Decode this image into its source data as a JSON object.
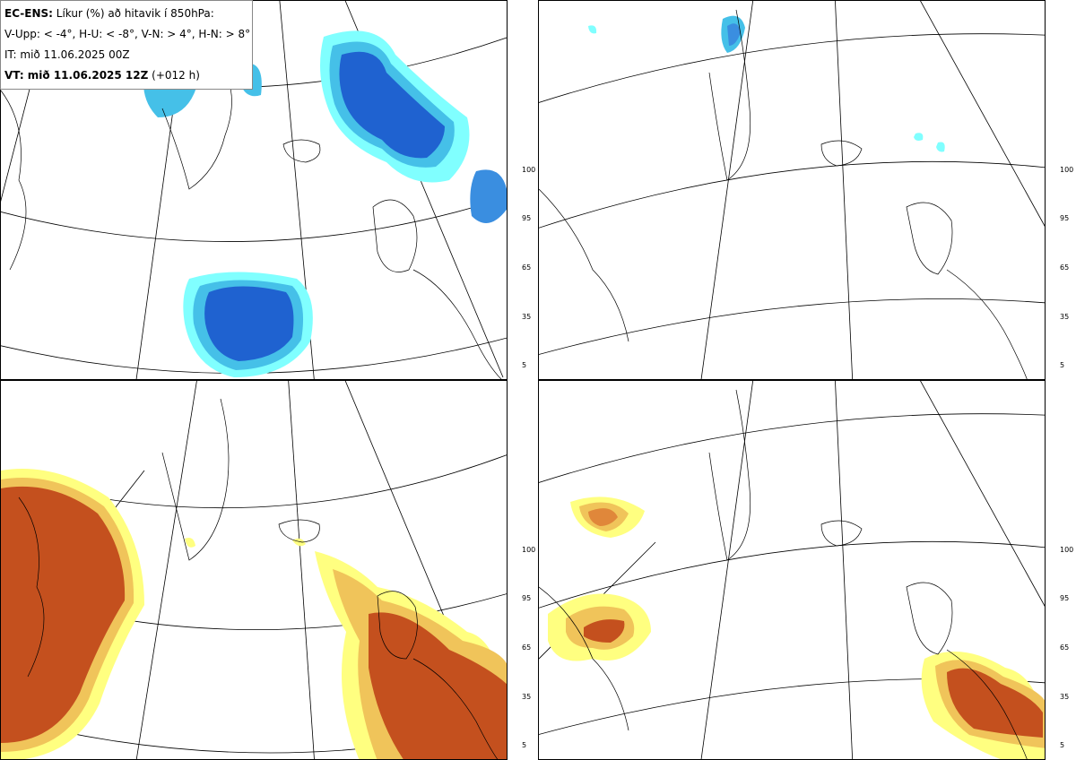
{
  "title": {
    "product": "EC-ENS:",
    "description": "Líkur (%) að hitavik í 850hPa:",
    "legend_line": "V-Upp: < -4°, H-U: < -8°, V-N: > 4°, H-N: > 8°",
    "init_time": "IT: mið 11.06.2025 00Z",
    "valid_label": "VT: mið 11.06.2025 12Z",
    "lead": "(+012 h)"
  },
  "colorbar_ticks": [
    "100",
    "95",
    "65",
    "35",
    "5"
  ],
  "panels": [
    {
      "id": "top-left",
      "variable": "V-Upp",
      "palette": "cold"
    },
    {
      "id": "top-right",
      "variable": "H-U",
      "palette": "cold"
    },
    {
      "id": "bottom-left",
      "variable": "V-N",
      "palette": "warm"
    },
    {
      "id": "bottom-right",
      "variable": "H-N",
      "palette": "warm"
    }
  ],
  "colors": {
    "cold": [
      "#80ffff",
      "#45c0e8",
      "#3a8ee0",
      "#1f62d0"
    ],
    "warm": [
      "#ffff80",
      "#f0c45a",
      "#e0873a",
      "#c4501e"
    ]
  }
}
